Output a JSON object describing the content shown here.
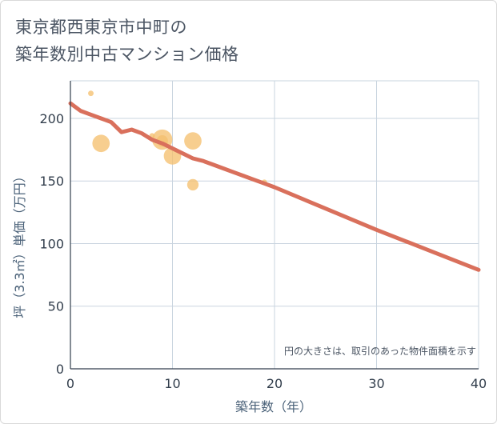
{
  "page": {
    "title_line1": "東京都西東京市中町の",
    "title_line2": "築年数別中古マンション価格"
  },
  "colors": {
    "bubble": "#f5c070",
    "trend": "#d9705c",
    "grid": "#c9d4df",
    "axis": "#333f4d",
    "axis_title": "#4b6279"
  },
  "chart_data": {
    "type": "scatter",
    "title": "東京都西東京市中町の築年数別中古マンション価格",
    "xlabel": "築年数（年）",
    "ylabel": "坪（3.3㎡）単価（万円）",
    "xlim": [
      0,
      40
    ],
    "ylim": [
      0,
      230
    ],
    "x_ticks": [
      0,
      10,
      20,
      30,
      40
    ],
    "y_ticks": [
      0,
      50,
      100,
      150,
      200
    ],
    "grid": true,
    "annotation": "円の大きさは、取引のあった物件面積を示す",
    "bubbles": [
      {
        "x": 2,
        "y": 220,
        "size": 1
      },
      {
        "x": 3,
        "y": 180,
        "size": 5
      },
      {
        "x": 8,
        "y": 186,
        "size": 1
      },
      {
        "x": 9,
        "y": 183,
        "size": 6
      },
      {
        "x": 9,
        "y": 182,
        "size": 3
      },
      {
        "x": 10,
        "y": 170,
        "size": 5
      },
      {
        "x": 12,
        "y": 182,
        "size": 5
      },
      {
        "x": 12,
        "y": 147,
        "size": 3
      },
      {
        "x": 19,
        "y": 149,
        "size": 1
      }
    ],
    "trend_line": {
      "x": [
        0,
        1,
        2,
        3,
        4,
        5,
        6,
        7,
        8,
        9,
        10,
        11,
        12,
        13,
        14,
        15,
        16,
        17,
        18,
        19,
        20,
        25,
        30,
        35,
        40
      ],
      "y": [
        212,
        206,
        203,
        200,
        197,
        189,
        191,
        188,
        183,
        180,
        176,
        172,
        168,
        166,
        163,
        160,
        157,
        154,
        151,
        148,
        145,
        128,
        111,
        95,
        79
      ]
    }
  }
}
